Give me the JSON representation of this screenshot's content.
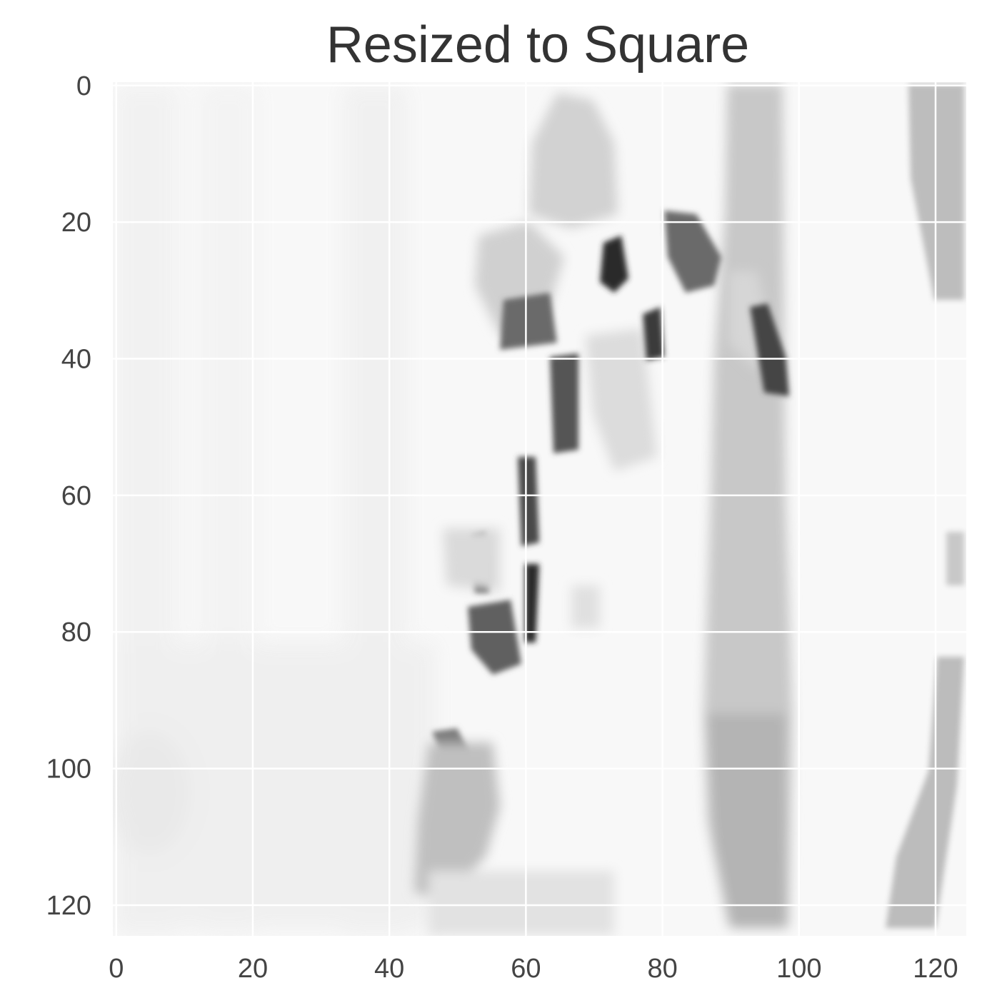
{
  "title": "Resized to Square",
  "chart_data": {
    "type": "heatmap",
    "title": "Resized to Square",
    "colormap": "gray_r",
    "grid": true,
    "image_size": [
      125,
      125
    ],
    "xlim": [
      -0.5,
      124.5
    ],
    "ylim": [
      124.5,
      -0.5
    ],
    "xticks": [
      0,
      20,
      40,
      60,
      80,
      100,
      120
    ],
    "yticks": [
      0,
      20,
      40,
      60,
      80,
      100,
      120
    ],
    "xtick_labels": [
      "0",
      "20",
      "40",
      "60",
      "80",
      "100",
      "120"
    ],
    "ytick_labels": [
      "0",
      "20",
      "40",
      "60",
      "80",
      "100",
      "120"
    ],
    "colors": {
      "grid": "#ffffff",
      "background": "#ffffff"
    }
  }
}
